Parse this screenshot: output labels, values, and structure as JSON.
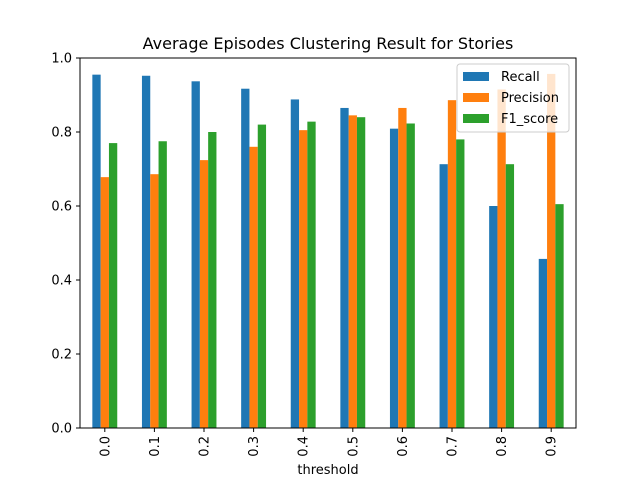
{
  "chart_data": {
    "type": "bar",
    "title": "Average Episodes Clustering Result for Stories",
    "xlabel": "threshold",
    "ylabel": "",
    "categories": [
      "0.0",
      "0.1",
      "0.2",
      "0.3",
      "0.4",
      "0.5",
      "0.6",
      "0.7",
      "0.8",
      "0.9"
    ],
    "ylim": [
      0,
      1.0
    ],
    "yticks": [
      "0.0",
      "0.2",
      "0.4",
      "0.6",
      "0.8",
      "1.0"
    ],
    "legend_position": "top-right",
    "grid": false,
    "series": [
      {
        "name": "Recall",
        "color": "#1f77b4",
        "values": [
          0.955,
          0.952,
          0.937,
          0.917,
          0.888,
          0.865,
          0.809,
          0.713,
          0.6,
          0.457
        ]
      },
      {
        "name": "Precision",
        "color": "#ff7f0e",
        "values": [
          0.678,
          0.686,
          0.724,
          0.76,
          0.805,
          0.845,
          0.865,
          0.886,
          0.915,
          0.957
        ]
      },
      {
        "name": "F1_score",
        "color": "#2ca02c",
        "values": [
          0.77,
          0.775,
          0.8,
          0.82,
          0.828,
          0.84,
          0.823,
          0.78,
          0.713,
          0.605
        ]
      }
    ]
  }
}
